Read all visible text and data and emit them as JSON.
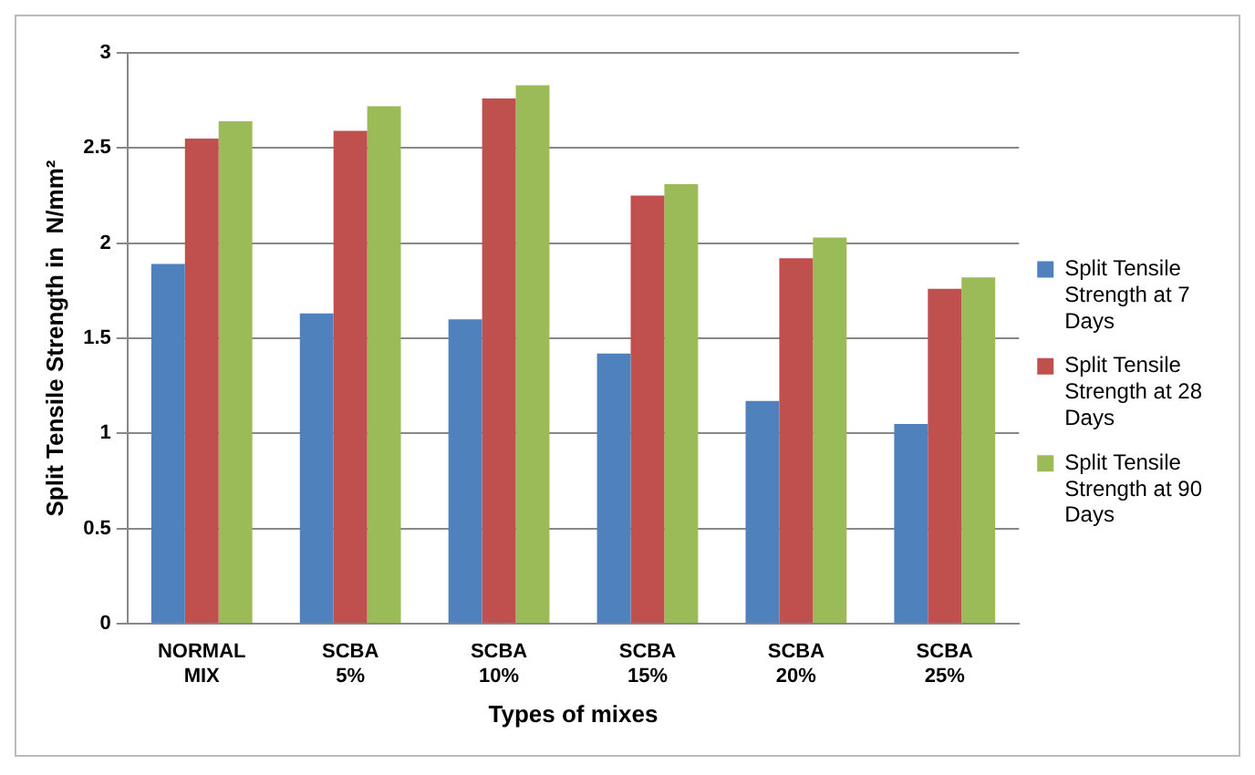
{
  "chart_data": {
    "type": "bar",
    "xlabel": "Types of mixes",
    "ylabel": "Split Tensile Strength in  N/mm²",
    "categories": [
      "NORMAL MIX",
      "SCBA 5%",
      "SCBA 10%",
      "SCBA 15%",
      "SCBA 20%",
      "SCBA 25%"
    ],
    "series": [
      {
        "name": "Split Tensile Strength at 7 Days",
        "color": "#4f81bd",
        "values": [
          1.89,
          1.63,
          1.6,
          1.42,
          1.17,
          1.05
        ]
      },
      {
        "name": "Split Tensile Strength at 28 Days",
        "color": "#c0504d",
        "values": [
          2.55,
          2.59,
          2.76,
          2.25,
          1.92,
          1.76
        ]
      },
      {
        "name": "Split Tensile Strength at 90 Days",
        "color": "#9bbb59",
        "values": [
          2.64,
          2.72,
          2.83,
          2.31,
          2.03,
          1.82
        ]
      }
    ],
    "ylim": [
      0,
      3
    ],
    "yticks": [
      0,
      0.5,
      1,
      1.5,
      2,
      2.5,
      3
    ],
    "grid": "y",
    "legend": "right"
  }
}
